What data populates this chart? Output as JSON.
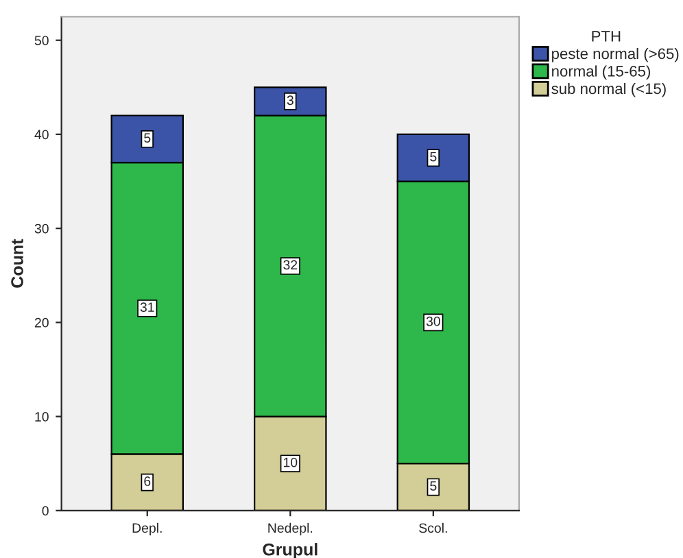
{
  "chart_data": {
    "type": "bar",
    "stacked": true,
    "xlabel": "Grupul",
    "ylabel": "Count",
    "legend_title": "PTH",
    "categories": [
      "Depl.",
      "Nedepl.",
      "Scol."
    ],
    "series": [
      {
        "name": "sub normal (<15)",
        "color": "#d3ce97",
        "values": [
          6,
          10,
          5
        ]
      },
      {
        "name": "normal (15-65)",
        "color": "#2eb84b",
        "values": [
          31,
          32,
          30
        ]
      },
      {
        "name": "peste normal (>65)",
        "color": "#3b54a8",
        "values": [
          5,
          3,
          5
        ]
      }
    ],
    "ylim": [
      0,
      52.5
    ],
    "yticks": [
      0,
      10,
      20,
      30,
      40,
      50
    ],
    "data_labels": true,
    "legend": "top right",
    "grid": false
  }
}
